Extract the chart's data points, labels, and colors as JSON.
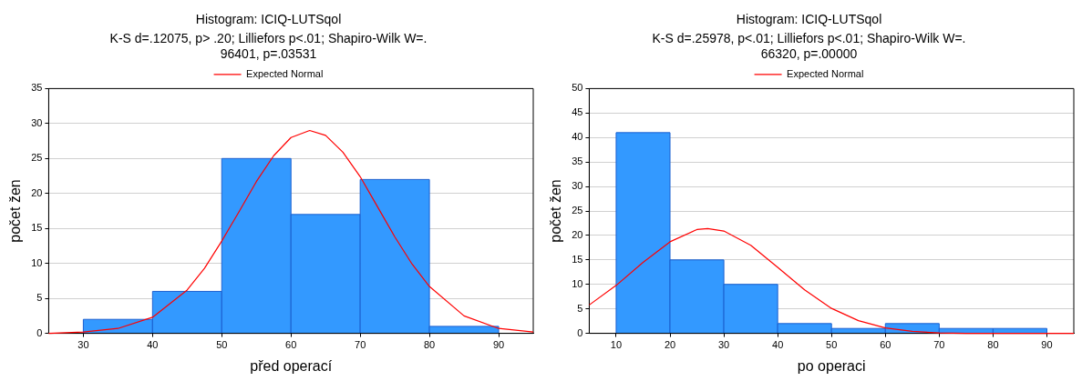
{
  "chart_data": [
    {
      "type": "histogram",
      "title": "Histogram: ICIQ-LUTSqol",
      "subtitle": "K-S d=.12075, p> .20; Lilliefors p<.01; Shapiro-Wilk W=.\n96401, p=.03531",
      "xlabel": "před operací",
      "ylabel": "počet žen",
      "bins": [
        30,
        40,
        50,
        60,
        70,
        80,
        90
      ],
      "values": [
        2,
        6,
        25,
        17,
        22,
        1
      ],
      "color": "#3399ff",
      "xlim": [
        25,
        95
      ],
      "xticks": [
        30,
        40,
        50,
        60,
        70,
        80,
        90
      ],
      "ylim": [
        0,
        35
      ],
      "yticks": [
        0,
        5,
        10,
        15,
        20,
        25,
        30,
        35
      ],
      "grid": "y",
      "legend": "top",
      "marker": "none",
      "series": [
        {
          "type": "line",
          "name": "Expected Normal",
          "color": "#ff0000",
          "x": [
            25,
            30,
            35,
            40,
            45,
            47.5,
            50,
            52.5,
            55,
            57.5,
            60,
            62.7,
            65,
            67.5,
            70,
            72.5,
            75,
            77.5,
            80,
            85,
            90,
            95
          ],
          "values": [
            0,
            0.2,
            0.7,
            2.3,
            6.2,
            9.3,
            13.2,
            17.4,
            21.7,
            25.4,
            28,
            29,
            28.3,
            25.9,
            22.4,
            18.1,
            13.8,
            9.9,
            6.7,
            2.5,
            0.7,
            0.2
          ]
        }
      ]
    },
    {
      "type": "histogram",
      "title": "Histogram: ICIQ-LUTSqol",
      "subtitle": "K-S d=.25978, p<.01; Lilliefors p<.01; Shapiro-Wilk W=.\n66320, p=.00000",
      "xlabel": "po operaci",
      "ylabel": "počet žen",
      "bins": [
        10,
        20,
        30,
        40,
        50,
        60,
        70,
        80,
        90
      ],
      "values": [
        41,
        15,
        10,
        2,
        1,
        2,
        1,
        1
      ],
      "color": "#3399ff",
      "xlim": [
        5,
        95
      ],
      "xticks": [
        10,
        20,
        30,
        40,
        50,
        60,
        70,
        80,
        90
      ],
      "ylim": [
        0,
        50
      ],
      "yticks": [
        0,
        5,
        10,
        15,
        20,
        25,
        30,
        35,
        40,
        45,
        50
      ],
      "grid": "y",
      "legend": "top",
      "marker": "none",
      "series": [
        {
          "type": "line",
          "name": "Expected Normal",
          "color": "#ff0000",
          "x": [
            5,
            10,
            15,
            20,
            25,
            27,
            30,
            35,
            40,
            45,
            50,
            55,
            60,
            65,
            70,
            75,
            80,
            85,
            90,
            95
          ],
          "values": [
            5.8,
            9.8,
            14.5,
            18.7,
            21.2,
            21.4,
            20.9,
            18,
            13.5,
            8.9,
            5.1,
            2.6,
            1.1,
            0.4,
            0.1,
            0,
            0,
            0,
            0,
            0
          ]
        }
      ]
    }
  ]
}
